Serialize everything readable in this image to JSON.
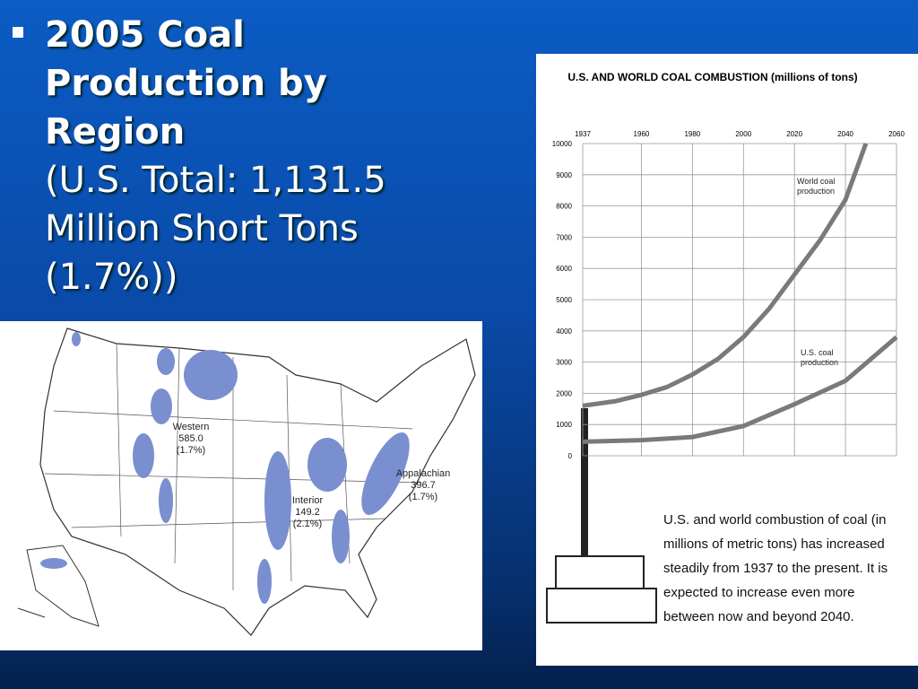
{
  "slide": {
    "title": "2005 Coal Production by Region",
    "subtitle": "(U.S. Total: 1,131.5 Million Short Tons (1.7%))"
  },
  "map": {
    "regions": [
      {
        "name": "Western",
        "value": "585.0",
        "share": "(1.7%)"
      },
      {
        "name": "Interior",
        "value": "149.2",
        "share": "(2.1%)"
      },
      {
        "name": "Appalachian",
        "value": "396.7",
        "share": "(1.7%)"
      }
    ]
  },
  "chart_data": {
    "type": "line",
    "title": "U.S. AND WORLD COAL COMBUSTION (millions of tons)",
    "xlim": [
      1937,
      2060
    ],
    "xticks": [
      1937,
      1960,
      1980,
      2000,
      2020,
      2040,
      2060
    ],
    "ylim": [
      0,
      10000
    ],
    "yticks": [
      0,
      1000,
      2000,
      3000,
      4000,
      5000,
      6000,
      7000,
      8000,
      9000,
      10000
    ],
    "grid": true,
    "series": [
      {
        "name": "World coal production",
        "color": "#7a7a7a",
        "x": [
          1937,
          1950,
          1960,
          1970,
          1980,
          1990,
          2000,
          2010,
          2020,
          2030,
          2040,
          2048
        ],
        "values": [
          1600,
          1750,
          1950,
          2200,
          2600,
          3100,
          3800,
          4700,
          5800,
          6900,
          8200,
          10000
        ]
      },
      {
        "name": "U.S. coal production",
        "color": "#7a7a7a",
        "x": [
          1937,
          1960,
          1980,
          2000,
          2020,
          2040,
          2060
        ],
        "values": [
          450,
          500,
          600,
          950,
          1650,
          2400,
          3800
        ]
      }
    ],
    "caption": "U.S. and world combustion of coal (in millions of metric tons) has increased steadily from 1937 to the present. It is expected to increase even more between now and beyond 2040."
  }
}
